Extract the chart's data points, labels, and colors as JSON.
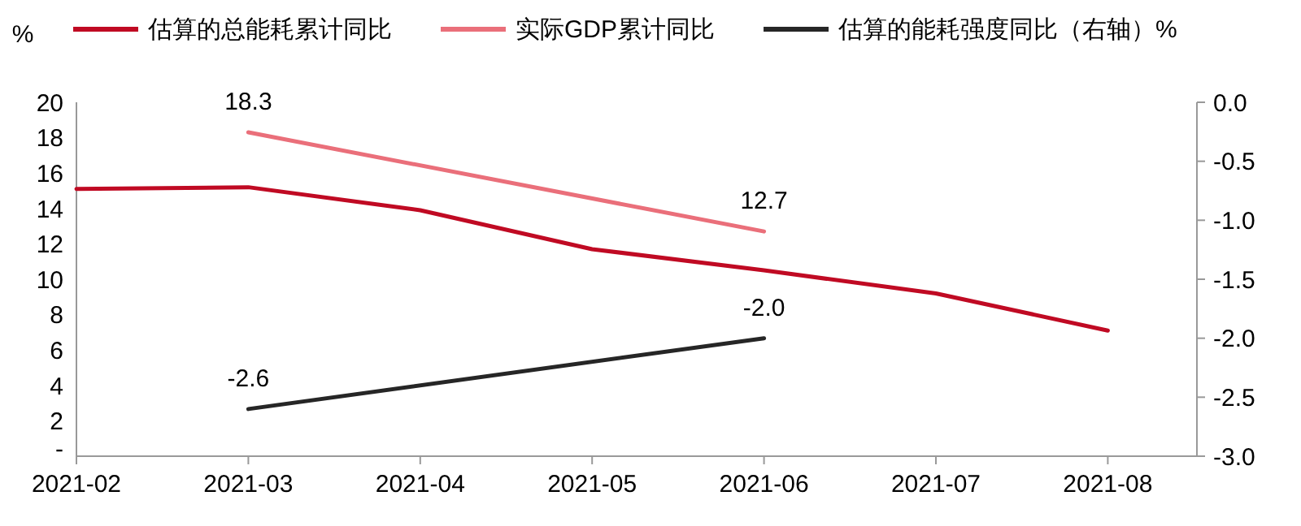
{
  "chart_data": {
    "type": "line",
    "ylabel": "%",
    "categories": [
      "2021-02",
      "2021-03",
      "2021-04",
      "2021-05",
      "2021-06",
      "2021-07",
      "2021-08"
    ],
    "series": [
      {
        "name": "估算的总能耗累计同比",
        "color": "#c00a23",
        "values": [
          15.1,
          15.2,
          13.9,
          11.7,
          10.5,
          9.2,
          7.1
        ]
      },
      {
        "name": "实际GDP累计同比",
        "color": "#ea6f7a",
        "values": [
          null,
          18.3,
          null,
          null,
          12.7,
          null,
          null
        ],
        "value_labels": [
          null,
          "18.3",
          null,
          null,
          "12.7",
          null,
          null
        ]
      },
      {
        "name": "估算的能耗强度同比（右轴）%",
        "color": "#262626",
        "axis": "y2",
        "values": [
          null,
          -2.6,
          null,
          null,
          -2.0,
          null,
          null
        ],
        "value_labels": [
          null,
          "-2.6",
          null,
          null,
          "-2.0",
          null,
          null
        ]
      }
    ],
    "ylim": [
      0,
      20
    ],
    "yticks": [
      {
        "value": 0,
        "label": "-"
      },
      2,
      4,
      6,
      8,
      10,
      12,
      14,
      16,
      18,
      20
    ],
    "y2lim": [
      -3,
      0
    ],
    "y2ticks": [
      {
        "value": -3,
        "label": "-3.0"
      },
      {
        "value": -2.5,
        "label": "-2.5"
      },
      {
        "value": -2,
        "label": "-2.0"
      },
      {
        "value": -1.5,
        "label": "-1.5"
      },
      {
        "value": -1,
        "label": "-1.0"
      },
      {
        "value": -0.5,
        "label": "-0.5"
      },
      {
        "value": 0,
        "label": "0.0"
      }
    ],
    "legend": "top",
    "grid": false
  }
}
